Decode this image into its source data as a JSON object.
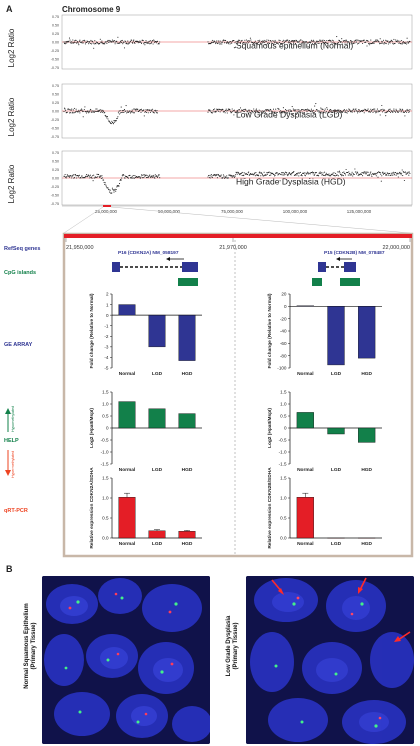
{
  "panels": {
    "a": "A",
    "b": "B"
  },
  "chromosome_title": "Chromosome 9",
  "cgh": {
    "ylabel": "Log2 Ratio",
    "y_ticks": [
      "0.75",
      "0.50",
      "0.25",
      "0.00",
      "-0.25",
      "-0.50",
      "-0.75"
    ],
    "x_ticks": [
      "25,000,000",
      "50,000,000",
      "75,000,000",
      "100,000,000",
      "125,000,000"
    ],
    "tracks": [
      {
        "label": "Squamous epithelium (Normal)"
      },
      {
        "label": "Low Grade Dysplasia (LGD)"
      },
      {
        "label": "High Grade Dysplasia (HGD)"
      }
    ]
  },
  "zoom": {
    "coords": [
      "21,950,000",
      "21,970,000",
      "22,000,000"
    ],
    "rows": [
      "RefSeq genes",
      "CpG islands",
      "GE ARRAY",
      "HELP",
      "qRT-PCR"
    ],
    "help_up": "Hypomethylated",
    "help_down": "Hypermethylated",
    "genes": [
      "P16 (CDKN2A) NM_058197",
      "P15 (CDKN2B) NM_078487"
    ],
    "colors": {
      "blue": "#2f3593",
      "green": "#12804a",
      "red": "#ee4422",
      "redbar": "#e41e26"
    }
  },
  "chart_data": [
    {
      "type": "bar",
      "id": "ge_p16",
      "color": "blue",
      "categories": [
        "Normal",
        "LGD",
        "HGD"
      ],
      "values": [
        1,
        -3,
        -4.3
      ],
      "ylim": [
        -5,
        2
      ],
      "ticks": [
        "2",
        "1",
        "0",
        "-1",
        "-2",
        "-3",
        "-4",
        "-5"
      ],
      "ylabel": "Fold change (Relative to Normal)"
    },
    {
      "type": "bar",
      "id": "ge_p15",
      "color": "blue",
      "categories": [
        "Normal",
        "LGD",
        "HGD"
      ],
      "values": [
        1,
        -95,
        -84
      ],
      "ylim": [
        -100,
        20
      ],
      "ticks": [
        "20",
        "0",
        "-20",
        "-40",
        "-60",
        "-80",
        "-100"
      ],
      "ylabel": "Fold change (Relative to Normal)"
    },
    {
      "type": "bar",
      "id": "help_p16",
      "color": "green",
      "categories": [
        "Normal",
        "LGD",
        "HGD"
      ],
      "values": [
        1.1,
        0.8,
        0.6
      ],
      "ylim": [
        -1.5,
        1.5
      ],
      "ticks": [
        "1.5",
        "1.0",
        "0.5",
        "0",
        "-0.5",
        "-1.0",
        "-1.5"
      ],
      "ylabel": "Log2 (HpaII/MspI)"
    },
    {
      "type": "bar",
      "id": "help_p15",
      "color": "green",
      "categories": [
        "Normal",
        "LGD",
        "HGD"
      ],
      "values": [
        0.65,
        -0.25,
        -0.6
      ],
      "ylim": [
        -1.5,
        1.5
      ],
      "ticks": [
        "1.5",
        "1.0",
        "0.5",
        "0",
        "-0.5",
        "-1.0",
        "-1.5"
      ],
      "ylabel": "Log2 (HpaII/MspI)"
    },
    {
      "type": "bar",
      "id": "qpcr_p16",
      "color": "redbar",
      "categories": [
        "Normal",
        "LGD",
        "HGD"
      ],
      "values": [
        1.02,
        0.18,
        0.17
      ],
      "errors": [
        0.1,
        0.03,
        0.02
      ],
      "ylim": [
        0,
        1.5
      ],
      "ticks": [
        "1.5",
        "1.0",
        "0.5",
        "0.0"
      ],
      "ylabel": "Relative expression CDKN2A/SDHA"
    },
    {
      "type": "bar",
      "id": "qpcr_p15",
      "color": "redbar",
      "categories": [
        "Normal",
        "LGD",
        "HGD"
      ],
      "values": [
        1.02,
        0,
        0
      ],
      "errors": [
        0.1,
        0,
        0
      ],
      "ylim": [
        0,
        1.5
      ],
      "ticks": [
        "1.5",
        "1.0",
        "0.5",
        "0.0"
      ],
      "ylabel": "Relative expression CDKN2B/SDHA"
    }
  ],
  "fish": [
    {
      "label_line1": "Normal Squamous Epithelium",
      "label_line2": "(Primary Tissue)"
    },
    {
      "label_line1": "Low Grade Dysplasia",
      "label_line2": "(Primary Tissue)"
    }
  ]
}
